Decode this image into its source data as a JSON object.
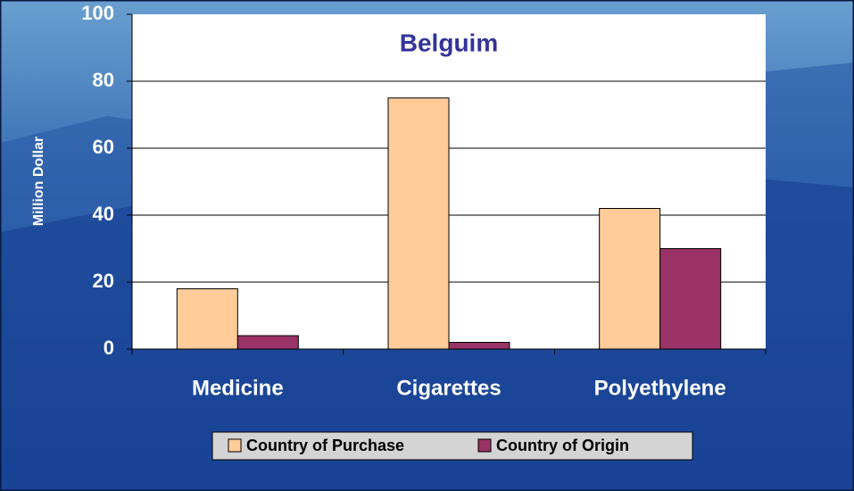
{
  "chart_data": {
    "type": "bar",
    "title": "Belguim",
    "y_label": "Million Dollar",
    "categories": [
      "Medicine",
      "Cigarettes",
      "Polyethylene"
    ],
    "series": [
      {
        "name": "Country of Purchase",
        "color": "#ffcc99",
        "values": [
          18,
          75,
          42
        ]
      },
      {
        "name": "Country of Origin",
        "color": "#993366",
        "values": [
          4,
          2,
          30
        ]
      }
    ],
    "ylim": [
      0,
      100
    ],
    "yticks": [
      0,
      20,
      40,
      60,
      80,
      100
    ],
    "grid": true,
    "legend": "bottom"
  }
}
